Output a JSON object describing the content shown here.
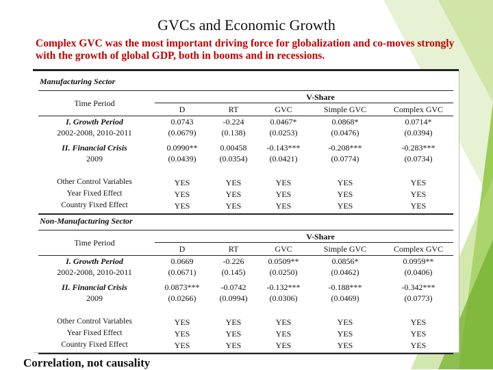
{
  "slide": {
    "title": "GVCs and Economic Growth",
    "subtitle": "Complex GVC was the most important driving force for globalization and co-moves strongly with the growth of global GDP, both in booms and in recessions.",
    "footer": "Correlation, not causality"
  },
  "colors": {
    "subtitle": "#c00000",
    "accent_green": "#8dc63f"
  },
  "table": {
    "columns": [
      "D",
      "RT",
      "GVC",
      "Simple GVC",
      "Complex GVC"
    ],
    "sections": [
      {
        "name": "Manufacturing Sector",
        "time_label": "Time Period",
        "group_header": "V-Share",
        "rows": [
          {
            "label1": "I. Growth Period",
            "label2": "2002-2008, 2010-2011",
            "coef": [
              "0.0743",
              "-0.224",
              "0.0467*",
              "0.0868*",
              "0.0714*"
            ],
            "se": [
              "(0.0679)",
              "(0.138)",
              "(0.0253)",
              "(0.0476)",
              "(0.0394)"
            ]
          },
          {
            "label1": "II. Financial Crisis",
            "label2": "2009",
            "coef": [
              "0.0990**",
              "0.00458",
              "-0.143***",
              "-0.208***",
              "-0.283***"
            ],
            "se": [
              "(0.0439)",
              "(0.0354)",
              "(0.0421)",
              "(0.0774)",
              "(0.0734)"
            ]
          }
        ],
        "controls": [
          {
            "label": "Other Control Variables",
            "vals": [
              "YES",
              "YES",
              "YES",
              "YES",
              "YES"
            ]
          },
          {
            "label": "Year Fixed Effect",
            "vals": [
              "YES",
              "YES",
              "YES",
              "YES",
              "YES"
            ]
          },
          {
            "label": "Country Fixed Effect",
            "vals": [
              "YES",
              "YES",
              "YES",
              "YES",
              "YES"
            ]
          }
        ]
      },
      {
        "name": "Non-Manufacturing Sector",
        "time_label": "Time Period",
        "group_header": "V-Share",
        "rows": [
          {
            "label1": "I. Growth Period",
            "label2": "2002-2008, 2010-2011",
            "coef": [
              "0.0669",
              "-0.226",
              "0.0509**",
              "0.0856*",
              "0.0959**"
            ],
            "se": [
              "(0.0671)",
              "(0.145)",
              "(0.0250)",
              "(0.0462)",
              "(0.0406)"
            ]
          },
          {
            "label1": "II. Financial Crisis",
            "label2": "2009",
            "coef": [
              "0.0873***",
              "-0.0742",
              "-0.132***",
              "-0.188***",
              "-0.342***"
            ],
            "se": [
              "(0.0266)",
              "(0.0994)",
              "(0.0306)",
              "(0.0469)",
              "(0.0773)"
            ]
          }
        ],
        "controls": [
          {
            "label": "Other Control Variables",
            "vals": [
              "YES",
              "YES",
              "YES",
              "YES",
              "YES"
            ]
          },
          {
            "label": "Year Fixed Effect",
            "vals": [
              "YES",
              "YES",
              "YES",
              "YES",
              "YES"
            ]
          },
          {
            "label": "Country Fixed Effect",
            "vals": [
              "YES",
              "YES",
              "YES",
              "YES",
              "YES"
            ]
          }
        ]
      }
    ]
  }
}
